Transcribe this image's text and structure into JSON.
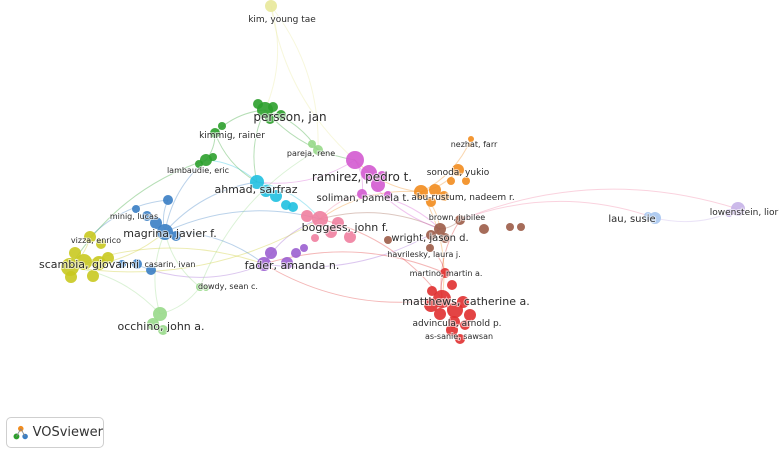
{
  "app": {
    "logo_text": "VOSviewer",
    "logo_icon": "vosviewer-logo-icon"
  },
  "colors": {
    "red": "#e03030",
    "green": "#2ca02c",
    "blue": "#3a7ec4",
    "yellow": "#c9c920",
    "purple": "#9b5fd0",
    "light_green": "#98d98a",
    "orange": "#f28c1e",
    "brown": "#9c5c48",
    "pink": "#f07fa0",
    "cyan": "#20c0e0",
    "magenta": "#d35ad0",
    "light_blue": "#a7c7ef",
    "lavender": "#c6b2e8",
    "pale_yellow": "#e8e89a"
  },
  "network": {
    "clusters": [
      {
        "name": "cluster-1",
        "color": "red"
      },
      {
        "name": "cluster-2",
        "color": "green"
      },
      {
        "name": "cluster-3",
        "color": "blue"
      },
      {
        "name": "cluster-4",
        "color": "yellow"
      },
      {
        "name": "cluster-5",
        "color": "purple"
      },
      {
        "name": "cluster-6",
        "color": "light_green"
      },
      {
        "name": "cluster-7",
        "color": "orange"
      },
      {
        "name": "cluster-8",
        "color": "brown"
      },
      {
        "name": "cluster-9",
        "color": "cyan"
      },
      {
        "name": "cluster-10",
        "color": "magenta"
      },
      {
        "name": "cluster-11",
        "color": "pink"
      },
      {
        "name": "cluster-12",
        "color": "light_blue"
      },
      {
        "name": "cluster-13",
        "color": "lavender"
      },
      {
        "name": "cluster-14",
        "color": "pale_yellow"
      }
    ],
    "labels": [
      {
        "id": "kim",
        "text": "kim, young tae",
        "cluster": "pale_yellow"
      },
      {
        "id": "persson",
        "text": "persson, jan",
        "cluster": "green"
      },
      {
        "id": "kimmig",
        "text": "kimmig, rainer",
        "cluster": "green"
      },
      {
        "id": "pareja",
        "text": "pareja, rene",
        "cluster": "light_green"
      },
      {
        "id": "nezhat",
        "text": "nezhat, farr",
        "cluster": "orange"
      },
      {
        "id": "lambaudie",
        "text": "lambaudie, eric",
        "cluster": "green"
      },
      {
        "id": "ramirez",
        "text": "ramirez, pedro t.",
        "cluster": "magenta"
      },
      {
        "id": "sonoda",
        "text": "sonoda, yukio",
        "cluster": "orange"
      },
      {
        "id": "ahmad",
        "text": "ahmad, sarfraz",
        "cluster": "cyan"
      },
      {
        "id": "soliman",
        "text": "soliman, pamela t.",
        "cluster": "magenta"
      },
      {
        "id": "aburustum",
        "text": "abu-rustum, nadeem r.",
        "cluster": "orange"
      },
      {
        "id": "lau",
        "text": "lau, susie",
        "cluster": "light_blue"
      },
      {
        "id": "lowenstein",
        "text": "lowenstein, lior",
        "cluster": "lavender"
      },
      {
        "id": "minig",
        "text": "minig, lucas",
        "cluster": "blue"
      },
      {
        "id": "brown",
        "text": "brown, jubilee",
        "cluster": "brown"
      },
      {
        "id": "magrina",
        "text": "magrina, javier f.",
        "cluster": "blue"
      },
      {
        "id": "boggess",
        "text": "boggess, john f.",
        "cluster": "pink"
      },
      {
        "id": "vizza",
        "text": "vizza, enrico",
        "cluster": "yellow"
      },
      {
        "id": "wright",
        "text": "wright, jason d.",
        "cluster": "brown"
      },
      {
        "id": "havrilesky",
        "text": "havrilesky, laura j.",
        "cluster": "brown"
      },
      {
        "id": "scambia",
        "text": "scambia, giovanni",
        "cluster": "yellow"
      },
      {
        "id": "casarin",
        "text": "casarin, ivan",
        "cluster": "blue"
      },
      {
        "id": "fader",
        "text": "fader, amanda n.",
        "cluster": "purple"
      },
      {
        "id": "martino",
        "text": "martino, martin a.",
        "cluster": "red"
      },
      {
        "id": "dowdy",
        "text": "dowdy, sean c.",
        "cluster": "light_green"
      },
      {
        "id": "matthews",
        "text": "matthews, catherine a.",
        "cluster": "red"
      },
      {
        "id": "occhino",
        "text": "occhino, john a.",
        "cluster": "light_green"
      },
      {
        "id": "advincula",
        "text": "advincula, arnold p.",
        "cluster": "red"
      },
      {
        "id": "assanie",
        "text": "as-sanie, sawsan",
        "cluster": "red"
      }
    ]
  }
}
